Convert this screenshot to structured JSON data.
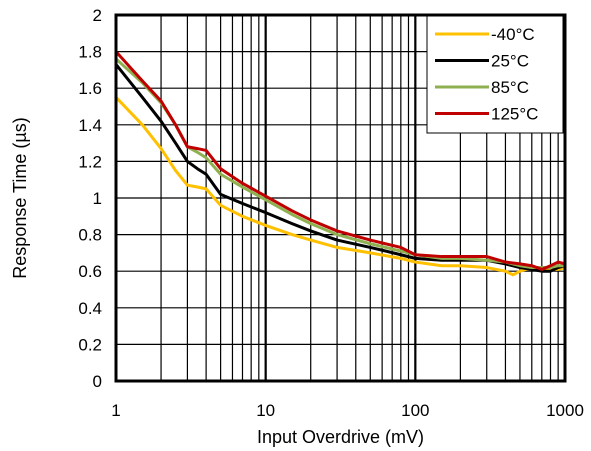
{
  "chart_data": {
    "type": "line",
    "xscale": "log",
    "xlim": [
      1,
      1000
    ],
    "ylim": [
      0,
      2
    ],
    "xlabel": "Input Overdrive (mV)",
    "ylabel": "Response Time (µs)",
    "xticks": [
      "1",
      "10",
      "100",
      "1000"
    ],
    "yticks": [
      "0",
      "0.2",
      "0.4",
      "0.6",
      "0.8",
      "1",
      "1.2",
      "1.4",
      "1.6",
      "1.8",
      "2"
    ],
    "grid": true,
    "legend_position": "top-right",
    "series": [
      {
        "name": "-40°C",
        "color": "#FFC000",
        "points": [
          [
            1,
            1.55
          ],
          [
            1.5,
            1.4
          ],
          [
            2,
            1.27
          ],
          [
            2.5,
            1.15
          ],
          [
            3,
            1.07
          ],
          [
            3.5,
            1.06
          ],
          [
            4,
            1.05
          ],
          [
            5,
            0.96
          ],
          [
            7,
            0.9
          ],
          [
            10,
            0.85
          ],
          [
            15,
            0.8
          ],
          [
            20,
            0.77
          ],
          [
            30,
            0.73
          ],
          [
            50,
            0.7
          ],
          [
            80,
            0.67
          ],
          [
            100,
            0.65
          ],
          [
            150,
            0.63
          ],
          [
            200,
            0.63
          ],
          [
            300,
            0.62
          ],
          [
            400,
            0.6
          ],
          [
            450,
            0.58
          ],
          [
            500,
            0.6
          ],
          [
            600,
            0.62
          ],
          [
            700,
            0.6
          ],
          [
            800,
            0.61
          ],
          [
            900,
            0.61
          ],
          [
            1000,
            0.62
          ]
        ]
      },
      {
        "name": "25°C",
        "color": "#000000",
        "points": [
          [
            1,
            1.73
          ],
          [
            1.5,
            1.55
          ],
          [
            2,
            1.42
          ],
          [
            2.5,
            1.3
          ],
          [
            3,
            1.2
          ],
          [
            3.5,
            1.16
          ],
          [
            4,
            1.13
          ],
          [
            5,
            1.02
          ],
          [
            7,
            0.97
          ],
          [
            10,
            0.92
          ],
          [
            15,
            0.86
          ],
          [
            20,
            0.82
          ],
          [
            30,
            0.77
          ],
          [
            50,
            0.73
          ],
          [
            80,
            0.69
          ],
          [
            100,
            0.67
          ],
          [
            150,
            0.66
          ],
          [
            200,
            0.66
          ],
          [
            300,
            0.66
          ],
          [
            400,
            0.64
          ],
          [
            500,
            0.62
          ],
          [
            600,
            0.61
          ],
          [
            700,
            0.6
          ],
          [
            800,
            0.6
          ],
          [
            900,
            0.62
          ],
          [
            1000,
            0.63
          ]
        ]
      },
      {
        "name": "85°C",
        "color": "#8FB050",
        "points": [
          [
            1,
            1.76
          ],
          [
            1.5,
            1.63
          ],
          [
            2,
            1.52
          ],
          [
            2.5,
            1.4
          ],
          [
            3,
            1.28
          ],
          [
            3.5,
            1.25
          ],
          [
            4,
            1.22
          ],
          [
            5,
            1.13
          ],
          [
            7,
            1.06
          ],
          [
            10,
            0.99
          ],
          [
            15,
            0.91
          ],
          [
            20,
            0.86
          ],
          [
            30,
            0.8
          ],
          [
            50,
            0.75
          ],
          [
            80,
            0.71
          ],
          [
            100,
            0.69
          ],
          [
            150,
            0.67
          ],
          [
            200,
            0.67
          ],
          [
            300,
            0.66
          ],
          [
            400,
            0.65
          ],
          [
            500,
            0.63
          ],
          [
            600,
            0.62
          ],
          [
            700,
            0.62
          ],
          [
            800,
            0.62
          ],
          [
            900,
            0.63
          ],
          [
            1000,
            0.63
          ]
        ]
      },
      {
        "name": "125°C",
        "color": "#C00000",
        "points": [
          [
            1,
            1.8
          ],
          [
            1.5,
            1.64
          ],
          [
            2,
            1.53
          ],
          [
            2.5,
            1.4
          ],
          [
            3,
            1.28
          ],
          [
            3.5,
            1.27
          ],
          [
            4,
            1.26
          ],
          [
            5,
            1.16
          ],
          [
            7,
            1.08
          ],
          [
            10,
            1.01
          ],
          [
            15,
            0.93
          ],
          [
            20,
            0.88
          ],
          [
            30,
            0.82
          ],
          [
            50,
            0.77
          ],
          [
            80,
            0.73
          ],
          [
            100,
            0.69
          ],
          [
            150,
            0.68
          ],
          [
            200,
            0.68
          ],
          [
            300,
            0.68
          ],
          [
            400,
            0.65
          ],
          [
            500,
            0.64
          ],
          [
            600,
            0.63
          ],
          [
            700,
            0.61
          ],
          [
            800,
            0.63
          ],
          [
            900,
            0.65
          ],
          [
            1000,
            0.64
          ]
        ]
      }
    ]
  }
}
